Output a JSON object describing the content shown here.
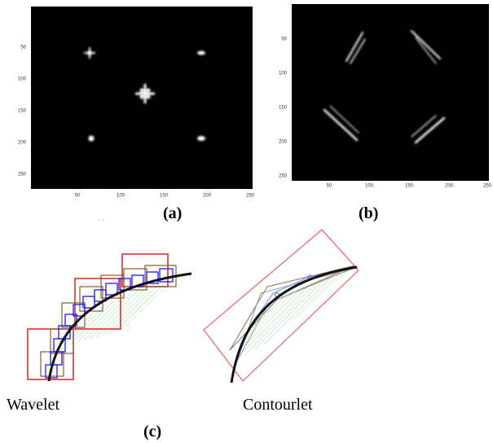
{
  "panels": [
    {
      "label": "(a)",
      "yticks": [
        50,
        100,
        150,
        200,
        250
      ],
      "xticks": [
        50,
        100,
        150,
        200,
        250
      ]
    },
    {
      "label": "(b)",
      "yticks": [
        50,
        100,
        150,
        200,
        250
      ],
      "xticks": [
        50,
        100,
        150,
        200,
        250
      ]
    }
  ],
  "panel_c": {
    "label": "(c)",
    "captions": [
      "Wavelet",
      "Contourlet"
    ]
  }
}
